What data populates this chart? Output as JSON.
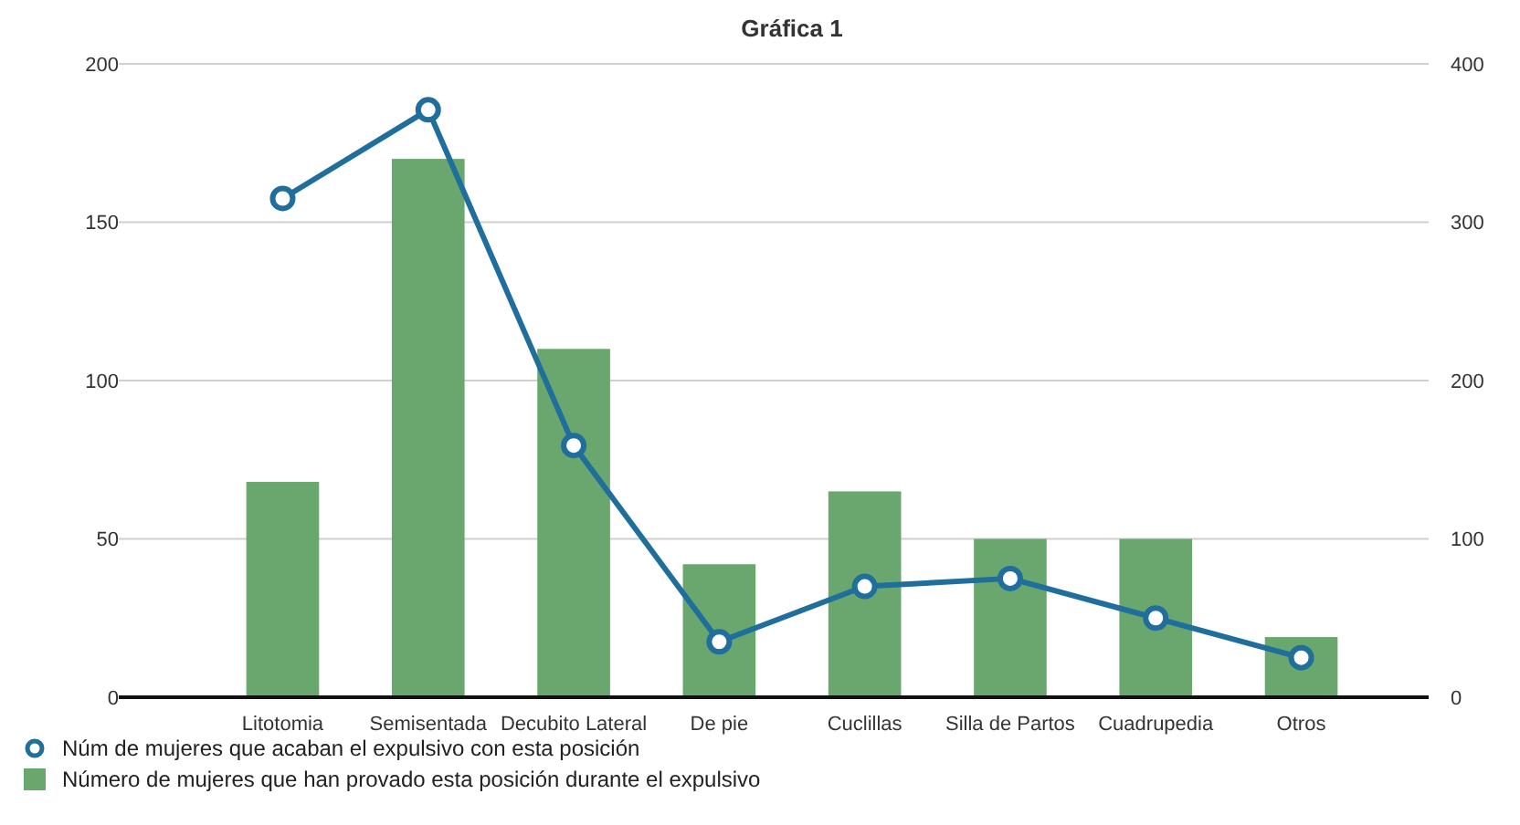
{
  "chart_data": {
    "type": "bar",
    "title": "Gráfica 1",
    "categories": [
      "Litotomia",
      "Semisentada",
      "Decubito Lateral",
      "De pie",
      "Cuclillas",
      "Silla de Partos",
      "Cuadrupedia",
      "Otros"
    ],
    "series": [
      {
        "name": "Núm de mujeres que acaban el expulsivo con esta posición",
        "type": "line",
        "axis": "y2",
        "color": "#1f6e9c",
        "values": [
          315,
          371,
          159,
          35,
          70,
          75,
          50,
          25
        ]
      },
      {
        "name": "Número de mujeres que han provado esta posición durante el expulsivo",
        "color": "#6aa76e",
        "values": [
          68,
          170,
          110,
          42,
          65,
          50,
          50,
          19
        ]
      }
    ],
    "ylim": [
      0,
      200
    ],
    "yticks": [
      0,
      50,
      100,
      150,
      200
    ],
    "y2lim": [
      0,
      400
    ],
    "y2ticks": [
      0,
      100,
      200,
      300,
      400
    ],
    "grid": "y",
    "legend": "bottom left",
    "marker": "circle",
    "line_style": "solid"
  }
}
